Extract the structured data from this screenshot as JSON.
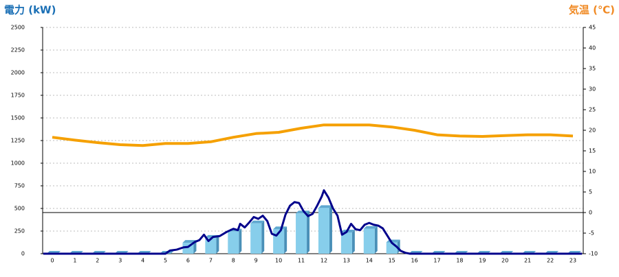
{
  "chart_data": {
    "type": "bar",
    "y_label": "電力 (kW)",
    "y2_label": "気温 (℃)",
    "categories": [
      "0",
      "1",
      "2",
      "3",
      "4",
      "5",
      "6",
      "7",
      "8",
      "9",
      "10",
      "11",
      "12",
      "13",
      "14",
      "15",
      "16",
      "17",
      "18",
      "19",
      "20",
      "21",
      "22",
      "23"
    ],
    "ylim": [
      0,
      2500
    ],
    "yticks": [
      0,
      250,
      500,
      750,
      1000,
      1250,
      1500,
      1750,
      2000,
      2250,
      2500
    ],
    "y2lim": [
      -10,
      45
    ],
    "y2ticks": [
      -10,
      -5,
      0,
      5,
      10,
      15,
      20,
      25,
      30,
      35,
      40,
      45
    ],
    "grid": true,
    "series": [
      {
        "type": "bar",
        "color": "#87ceeb",
        "values": [
          0,
          0,
          0,
          0,
          0,
          0,
          120,
          175,
          245,
          335,
          270,
          445,
          505,
          235,
          275,
          125,
          0,
          0,
          0,
          0,
          0,
          0,
          0,
          0
        ]
      },
      {
        "type": "line",
        "color": "#00008b",
        "x": [
          -0.4,
          5.0,
          5.2,
          5.5,
          5.8,
          6.0,
          6.3,
          6.5,
          6.7,
          6.9,
          7.1,
          7.4,
          7.7,
          8.0,
          8.2,
          8.3,
          8.5,
          8.7,
          8.9,
          9.1,
          9.3,
          9.5,
          9.7,
          9.9,
          10.1,
          10.3,
          10.5,
          10.7,
          10.9,
          11.1,
          11.3,
          11.5,
          11.7,
          11.9,
          12.0,
          12.2,
          12.4,
          12.6,
          12.8,
          13.0,
          13.2,
          13.4,
          13.6,
          13.8,
          14.0,
          14.2,
          14.4,
          14.6,
          14.8,
          15.0,
          15.2,
          15.4,
          15.6,
          15.8,
          23.4
        ],
        "values": [
          0,
          0,
          35,
          45,
          70,
          75,
          130,
          150,
          210,
          140,
          185,
          195,
          240,
          275,
          260,
          330,
          290,
          345,
          405,
          385,
          420,
          360,
          220,
          200,
          260,
          430,
          530,
          570,
          560,
          470,
          415,
          440,
          530,
          630,
          700,
          620,
          500,
          420,
          210,
          240,
          330,
          270,
          260,
          320,
          340,
          320,
          310,
          280,
          200,
          120,
          80,
          30,
          10,
          0,
          0
        ]
      },
      {
        "type": "line",
        "axis": "y2",
        "color": "#f5a000",
        "values": [
          18.3,
          17.6,
          17.0,
          16.5,
          16.3,
          16.8,
          16.8,
          17.2,
          18.3,
          19.2,
          19.5,
          20.5,
          21.3,
          21.3,
          21.3,
          20.8,
          20.0,
          18.9,
          18.6,
          18.5,
          18.7,
          18.9,
          18.9,
          18.6
        ]
      }
    ]
  }
}
